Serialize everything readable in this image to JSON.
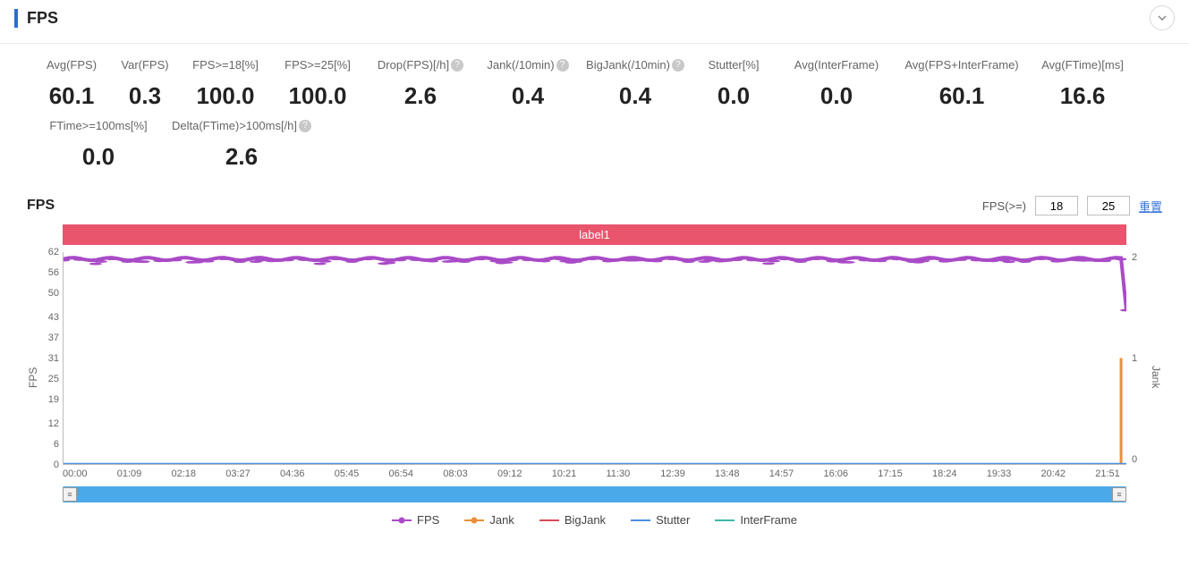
{
  "header": {
    "title": "FPS"
  },
  "metrics": [
    {
      "label": "Avg(FPS)",
      "value": "60.1",
      "help": false,
      "width": 80
    },
    {
      "label": "Var(FPS)",
      "value": "0.3",
      "help": false,
      "width": 84
    },
    {
      "label": "FPS>=18[%]",
      "value": "100.0",
      "help": false,
      "width": 96
    },
    {
      "label": "FPS>=25[%]",
      "value": "100.0",
      "help": false,
      "width": 110
    },
    {
      "label": "Drop(FPS)[/h]",
      "value": "2.6",
      "help": true,
      "width": 120
    },
    {
      "label": "Jank(/10min)",
      "value": "0.4",
      "help": true,
      "width": 120
    },
    {
      "label": "BigJank(/10min)",
      "value": "0.4",
      "help": true,
      "width": 120
    },
    {
      "label": "Stutter[%]",
      "value": "0.0",
      "help": false,
      "width": 100
    },
    {
      "label": "Avg(InterFrame)",
      "value": "0.0",
      "help": false,
      "width": 130
    },
    {
      "label": "Avg(FPS+InterFrame)",
      "value": "60.1",
      "help": false,
      "width": 150
    },
    {
      "label": "Avg(FTime)[ms]",
      "value": "16.6",
      "help": false,
      "width": 120
    }
  ],
  "metrics_row2": [
    {
      "label": "FTime>=100ms[%]",
      "value": "0.0",
      "help": false,
      "width": 140
    },
    {
      "label": "Delta(FTime)>100ms[/h]",
      "value": "2.6",
      "help": true,
      "width": 180
    }
  ],
  "chart": {
    "title": "FPS",
    "fps_ge_label": "FPS(>=)",
    "fps_ge_1": "18",
    "fps_ge_2": "25",
    "reset_label": "重置",
    "label_bar": "label1",
    "y_title_left": "FPS",
    "y_title_right": "Jank",
    "y_left_max": 62,
    "y_left_min": 0,
    "y_left_ticks": [
      62,
      56,
      50,
      43,
      37,
      31,
      25,
      19,
      12,
      6,
      0
    ],
    "y_right_ticks_top": "2",
    "y_right_ticks_mid": "1",
    "y_right_ticks_bot": "0",
    "x_ticks": [
      "00:00",
      "01:09",
      "02:18",
      "03:27",
      "04:36",
      "05:45",
      "06:54",
      "08:03",
      "09:12",
      "10:21",
      "11:30",
      "12:39",
      "13:48",
      "14:57",
      "16:06",
      "17:15",
      "18:24",
      "19:33",
      "20:42",
      "21:51"
    ],
    "series": {
      "fps_color": "#a94bc7",
      "jank_color": "#e98f3b",
      "bigjank_color": "#d84b55",
      "stutter_color": "#4a8fe0",
      "interframe_color": "#3bb8a8",
      "fps_baseline": 60,
      "fps_dip_indices": [
        3,
        7,
        12,
        18,
        24,
        30,
        36,
        41,
        47,
        53,
        60,
        66,
        73,
        80,
        88,
        95
      ],
      "jank_spike_x": 0.995,
      "jank_spike_val": 1
    },
    "legend": [
      {
        "name": "FPS",
        "color": "#a94bc7",
        "dot": true
      },
      {
        "name": "Jank",
        "color": "#e98f3b",
        "dot": true
      },
      {
        "name": "BigJank",
        "color": "#d84b55",
        "dot": false
      },
      {
        "name": "Stutter",
        "color": "#4a8fe0",
        "dot": false
      },
      {
        "name": "InterFrame",
        "color": "#3bb8a8",
        "dot": false
      }
    ],
    "scrollbar_color": "#4aa9e8"
  }
}
